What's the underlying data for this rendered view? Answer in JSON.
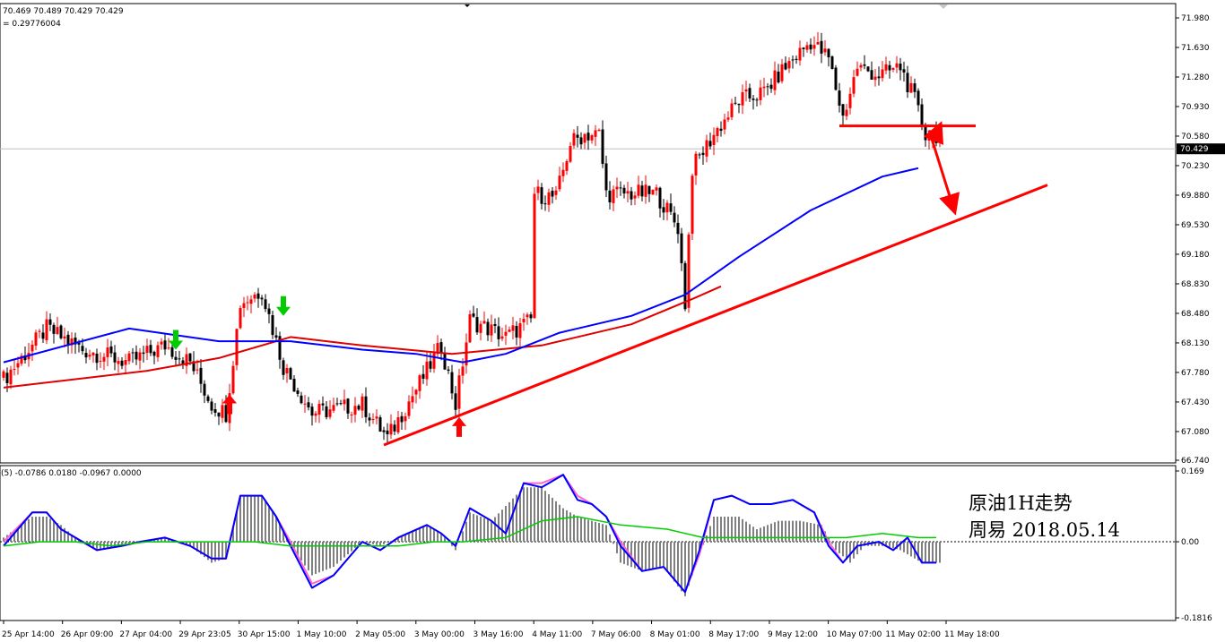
{
  "header": {
    "ohlc_text": "70.469 70.489 70.429 70.429",
    "value_text": "= 0.29776004"
  },
  "annotation": {
    "line1": "原油1H走势",
    "line2": "周易  2018.05.14"
  },
  "colors": {
    "bull": "#ff0000",
    "bear": "#000000",
    "ma_blue": "#0000ff",
    "ma_red": "#e00000",
    "trendline": "#ff0000",
    "macd_hist": "#808080",
    "macd_blue": "#0000ff",
    "macd_pink": "#ff66cc",
    "macd_green": "#00cc00",
    "buy_arrow": "#ff0000",
    "sell_arrow": "#00cc00"
  },
  "chart_data": [
    {
      "type": "candlestick",
      "timeframe": "H1",
      "ylim": [
        66.74,
        72.05
      ],
      "price_ticks": [
        "71.980",
        "71.630",
        "71.280",
        "70.930",
        "70.580",
        "70.230",
        "69.880",
        "69.530",
        "69.180",
        "68.830",
        "68.480",
        "68.130",
        "67.780",
        "67.430",
        "67.080",
        "66.740"
      ],
      "current_price": "70.429",
      "time_labels": [
        "25 Apr 14:00",
        "26 Apr 09:00",
        "27 Apr 04:00",
        "29 Apr 23:05",
        "30 Apr 15:00",
        "1 May 10:00",
        "2 May 05:00",
        "3 May 00:00",
        "3 May 16:00",
        "4 May 11:00",
        "7 May 06:00",
        "8 May 01:00",
        "8 May 17:00",
        "9 May 12:00",
        "10 May 07:00",
        "11 May 02:00",
        "11 May 18:00"
      ],
      "close_anchors": [
        [
          0,
          67.7
        ],
        [
          12,
          68.3
        ],
        [
          22,
          68.05
        ],
        [
          35,
          67.9
        ],
        [
          45,
          68.1
        ],
        [
          52,
          67.9
        ],
        [
          58,
          67.4
        ],
        [
          62,
          67.3
        ],
        [
          66,
          68.6
        ],
        [
          72,
          68.75
        ],
        [
          78,
          67.85
        ],
        [
          86,
          67.3
        ],
        [
          100,
          67.4
        ],
        [
          107,
          67.0
        ],
        [
          118,
          67.8
        ],
        [
          122,
          68.1
        ],
        [
          126,
          67.4
        ],
        [
          130,
          68.4
        ],
        [
          140,
          68.2
        ],
        [
          147,
          68.4
        ],
        [
          148,
          69.9
        ],
        [
          154,
          69.85
        ],
        [
          158,
          70.5
        ],
        [
          162,
          70.6
        ],
        [
          166,
          70.6
        ],
        [
          168,
          69.9
        ],
        [
          175,
          69.9
        ],
        [
          182,
          69.9
        ],
        [
          188,
          69.5
        ],
        [
          190,
          68.6
        ],
        [
          192,
          70.2
        ],
        [
          198,
          70.6
        ],
        [
          205,
          71.0
        ],
        [
          212,
          71.1
        ],
        [
          218,
          71.4
        ],
        [
          225,
          71.7
        ],
        [
          230,
          71.5
        ],
        [
          234,
          70.8
        ],
        [
          238,
          71.4
        ],
        [
          244,
          71.3
        ],
        [
          250,
          71.4
        ],
        [
          254,
          71.0
        ],
        [
          257,
          70.6
        ],
        [
          260,
          70.6
        ]
      ],
      "ma_blue": [
        [
          0,
          67.9
        ],
        [
          35,
          68.3
        ],
        [
          60,
          68.15
        ],
        [
          80,
          68.15
        ],
        [
          100,
          68.05
        ],
        [
          115,
          68.0
        ],
        [
          128,
          67.9
        ],
        [
          140,
          68.0
        ],
        [
          155,
          68.25
        ],
        [
          175,
          68.45
        ],
        [
          190,
          68.7
        ],
        [
          205,
          69.15
        ],
        [
          225,
          69.7
        ],
        [
          245,
          70.1
        ],
        [
          255,
          70.2
        ]
      ],
      "ma_red": [
        [
          0,
          67.6
        ],
        [
          40,
          67.8
        ],
        [
          60,
          67.95
        ],
        [
          80,
          68.2
        ],
        [
          100,
          68.1
        ],
        [
          125,
          68.0
        ],
        [
          150,
          68.1
        ],
        [
          175,
          68.35
        ],
        [
          192,
          68.65
        ],
        [
          200,
          68.8
        ]
      ],
      "trendlines": [
        {
          "from": [
            106,
            66.92
          ],
          "to": [
            291,
            70.0
          ]
        },
        {
          "from": [
            233,
            70.7
          ],
          "to": [
            271,
            70.7
          ]
        }
      ],
      "price_arrows": [
        {
          "from": [
            258,
            70.65
          ],
          "to": [
            265,
            69.7
          ]
        },
        {
          "from": [
            259,
            70.5
          ],
          "to": [
            261,
            70.7
          ]
        }
      ],
      "signals": [
        {
          "type": "buy",
          "x": 63,
          "price": 67.52
        },
        {
          "type": "buy",
          "x": 127,
          "price": 67.25
        },
        {
          "type": "sell",
          "x": 48,
          "price": 68.05
        },
        {
          "type": "sell",
          "x": 78,
          "price": 68.45
        }
      ]
    },
    {
      "type": "macd",
      "label": "(5) -0.0786 0.0180 -0.0967 0.0000",
      "ylim": [
        -0.1816,
        0.169
      ],
      "ticks": [
        "0.169",
        "0.00",
        "-0.1816"
      ],
      "series": [
        {
          "name": "hist",
          "values": [
            [
              0,
              0.01
            ],
            [
              8,
              0.06
            ],
            [
              12,
              0.06
            ],
            [
              16,
              0.04
            ],
            [
              20,
              0.01
            ],
            [
              26,
              -0.02
            ],
            [
              33,
              -0.01
            ],
            [
              38,
              0.0
            ],
            [
              45,
              0.01
            ],
            [
              52,
              -0.01
            ],
            [
              58,
              -0.05
            ],
            [
              62,
              -0.04
            ],
            [
              66,
              0.11
            ],
            [
              72,
              0.11
            ],
            [
              76,
              0.06
            ],
            [
              80,
              -0.01
            ],
            [
              86,
              -0.08
            ],
            [
              92,
              -0.06
            ],
            [
              100,
              0.0
            ],
            [
              105,
              -0.01
            ],
            [
              110,
              0.01
            ],
            [
              118,
              0.04
            ],
            [
              122,
              0.02
            ],
            [
              126,
              -0.02
            ],
            [
              130,
              0.07
            ],
            [
              136,
              0.05
            ],
            [
              145,
              0.13
            ],
            [
              150,
              0.13
            ],
            [
              156,
              0.08
            ],
            [
              160,
              0.06
            ],
            [
              168,
              0.04
            ],
            [
              172,
              -0.05
            ],
            [
              178,
              -0.07
            ],
            [
              184,
              -0.06
            ],
            [
              190,
              -0.13
            ],
            [
              194,
              -0.03
            ],
            [
              198,
              0.06
            ],
            [
              205,
              0.06
            ],
            [
              210,
              0.03
            ],
            [
              216,
              0.05
            ],
            [
              222,
              0.05
            ],
            [
              228,
              0.04
            ],
            [
              232,
              -0.02
            ],
            [
              236,
              -0.05
            ],
            [
              240,
              -0.01
            ],
            [
              246,
              -0.01
            ],
            [
              250,
              -0.02
            ],
            [
              256,
              -0.05
            ],
            [
              260,
              -0.05
            ]
          ]
        },
        {
          "name": "blue",
          "values": [
            [
              0,
              -0.01
            ],
            [
              8,
              0.07
            ],
            [
              12,
              0.07
            ],
            [
              16,
              0.03
            ],
            [
              20,
              0.01
            ],
            [
              26,
              -0.02
            ],
            [
              33,
              -0.01
            ],
            [
              38,
              0.0
            ],
            [
              45,
              0.01
            ],
            [
              52,
              -0.01
            ],
            [
              58,
              -0.04
            ],
            [
              62,
              -0.04
            ],
            [
              66,
              0.11
            ],
            [
              72,
              0.11
            ],
            [
              76,
              0.06
            ],
            [
              80,
              -0.01
            ],
            [
              86,
              -0.11
            ],
            [
              92,
              -0.08
            ],
            [
              100,
              0.0
            ],
            [
              105,
              -0.02
            ],
            [
              110,
              0.01
            ],
            [
              118,
              0.04
            ],
            [
              122,
              0.02
            ],
            [
              126,
              -0.01
            ],
            [
              130,
              0.08
            ],
            [
              136,
              0.05
            ],
            [
              140,
              0.02
            ],
            [
              145,
              0.14
            ],
            [
              150,
              0.13
            ],
            [
              156,
              0.16
            ],
            [
              160,
              0.1
            ],
            [
              164,
              0.09
            ],
            [
              168,
              0.06
            ],
            [
              172,
              -0.01
            ],
            [
              178,
              -0.07
            ],
            [
              184,
              -0.06
            ],
            [
              190,
              -0.12
            ],
            [
              194,
              -0.02
            ],
            [
              198,
              0.1
            ],
            [
              203,
              0.11
            ],
            [
              208,
              0.09
            ],
            [
              214,
              0.09
            ],
            [
              220,
              0.1
            ],
            [
              226,
              0.07
            ],
            [
              230,
              -0.01
            ],
            [
              234,
              -0.05
            ],
            [
              238,
              -0.01
            ],
            [
              244,
              0.0
            ],
            [
              248,
              -0.02
            ],
            [
              252,
              0.01
            ],
            [
              256,
              -0.05
            ],
            [
              260,
              -0.05
            ]
          ]
        },
        {
          "name": "pink",
          "values": [
            [
              0,
              0.0
            ],
            [
              8,
              0.07
            ],
            [
              12,
              0.07
            ],
            [
              16,
              0.03
            ],
            [
              20,
              0.01
            ],
            [
              26,
              -0.02
            ],
            [
              33,
              -0.01
            ],
            [
              38,
              0.0
            ],
            [
              45,
              0.01
            ],
            [
              52,
              -0.01
            ],
            [
              58,
              -0.04
            ],
            [
              62,
              -0.04
            ],
            [
              66,
              0.11
            ],
            [
              72,
              0.11
            ],
            [
              76,
              0.06
            ],
            [
              80,
              0.0
            ],
            [
              86,
              -0.1
            ],
            [
              92,
              -0.08
            ],
            [
              100,
              0.0
            ],
            [
              105,
              -0.02
            ],
            [
              110,
              0.01
            ],
            [
              118,
              0.04
            ],
            [
              122,
              0.02
            ],
            [
              126,
              -0.01
            ],
            [
              130,
              0.08
            ],
            [
              136,
              0.05
            ],
            [
              140,
              0.02
            ],
            [
              145,
              0.14
            ],
            [
              150,
              0.14
            ],
            [
              156,
              0.16
            ],
            [
              160,
              0.11
            ],
            [
              164,
              0.09
            ],
            [
              168,
              0.06
            ],
            [
              172,
              0.0
            ],
            [
              178,
              -0.07
            ],
            [
              184,
              -0.06
            ],
            [
              190,
              -0.12
            ],
            [
              194,
              -0.03
            ],
            [
              198,
              0.1
            ],
            [
              203,
              0.11
            ],
            [
              208,
              0.09
            ],
            [
              214,
              0.09
            ],
            [
              220,
              0.1
            ],
            [
              226,
              0.07
            ],
            [
              230,
              0.0
            ],
            [
              234,
              -0.05
            ],
            [
              238,
              -0.01
            ],
            [
              244,
              0.0
            ],
            [
              248,
              -0.02
            ],
            [
              252,
              0.01
            ],
            [
              256,
              -0.05
            ],
            [
              260,
              -0.05
            ]
          ]
        },
        {
          "name": "green",
          "values": [
            [
              0,
              -0.01
            ],
            [
              10,
              0.0
            ],
            [
              20,
              0.0
            ],
            [
              30,
              -0.01
            ],
            [
              40,
              0.0
            ],
            [
              50,
              0.0
            ],
            [
              60,
              0.0
            ],
            [
              70,
              0.0
            ],
            [
              80,
              -0.01
            ],
            [
              90,
              -0.01
            ],
            [
              100,
              -0.01
            ],
            [
              110,
              -0.01
            ],
            [
              120,
              0.0
            ],
            [
              128,
              0.0
            ],
            [
              140,
              0.01
            ],
            [
              150,
              0.05
            ],
            [
              160,
              0.06
            ],
            [
              172,
              0.04
            ],
            [
              185,
              0.03
            ],
            [
              195,
              0.01
            ],
            [
              205,
              0.01
            ],
            [
              215,
              0.01
            ],
            [
              225,
              0.01
            ],
            [
              235,
              0.01
            ],
            [
              245,
              0.02
            ],
            [
              255,
              0.01
            ],
            [
              260,
              0.01
            ]
          ]
        }
      ]
    }
  ]
}
